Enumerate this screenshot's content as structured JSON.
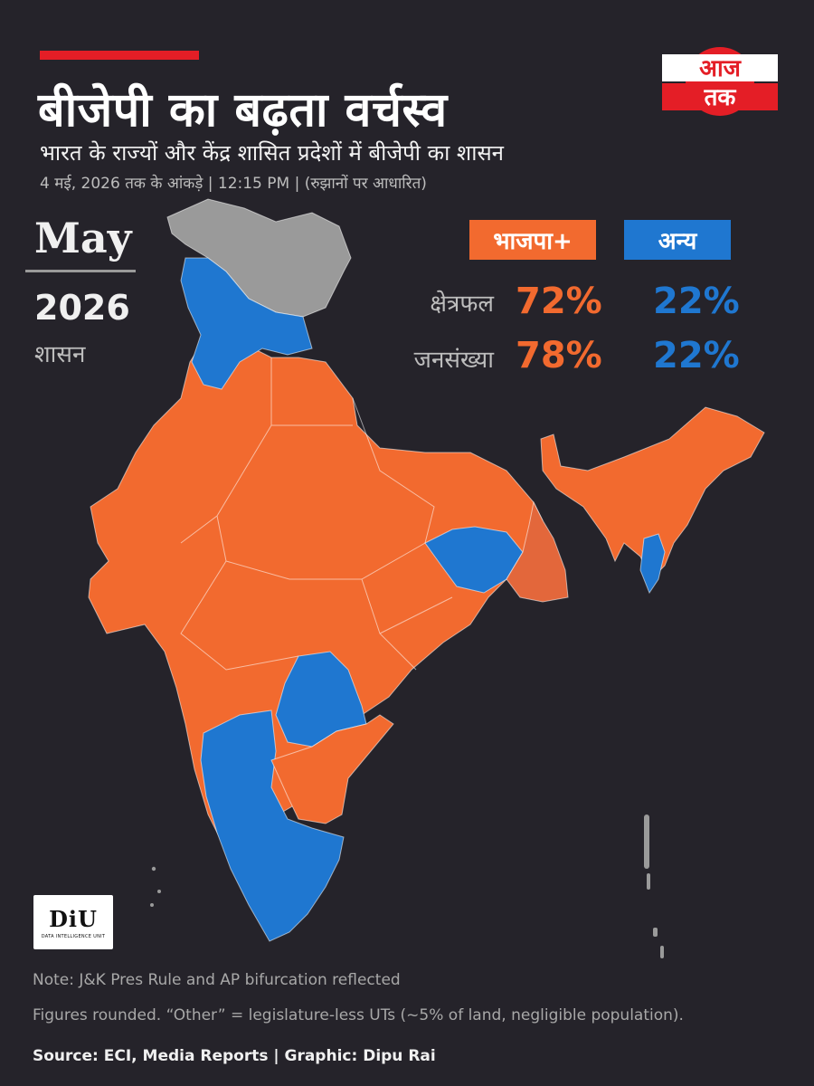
{
  "header": {
    "title": "बीजेपी का बढ़ता वर्चस्व",
    "subtitle": "भारत के राज्यों और केंद्र शासित प्रदेशों में बीजेपी का शासन",
    "dateline": "4 मई, 2026 तक के आंकड़े | 12:15 PM | (रुझानों पर आधारित)"
  },
  "brand": {
    "logo_text_top": "आज",
    "logo_text_bottom": "तक",
    "logo_color": "#e41e26"
  },
  "period": {
    "month": "May",
    "year": "2026",
    "label": "शासन"
  },
  "legend": {
    "bjp_label": "भाजपा+",
    "other_label": "अन्य",
    "bjp_color": "#f26a2f",
    "other_color": "#1f77d0",
    "no_govt_color": "#9a9a9a"
  },
  "stats": {
    "area_label": "क्षेत्रफल",
    "population_label": "जनसंख्या",
    "area_bjp": "72%",
    "area_other": "22%",
    "population_bjp": "78%",
    "population_other": "22%"
  },
  "map_regions": [
    {
      "name": "Jammu & Kashmir / Ladakh",
      "status": "pres-rule"
    },
    {
      "name": "Himachal Pradesh",
      "status": "other"
    },
    {
      "name": "Punjab",
      "status": "other"
    },
    {
      "name": "Uttarakhand",
      "status": "bjp"
    },
    {
      "name": "Uttar Pradesh",
      "status": "bjp"
    },
    {
      "name": "Rajasthan",
      "status": "bjp"
    },
    {
      "name": "Gujarat",
      "status": "bjp"
    },
    {
      "name": "Madhya Pradesh",
      "status": "bjp"
    },
    {
      "name": "Bihar",
      "status": "bjp"
    },
    {
      "name": "Jharkhand",
      "status": "other"
    },
    {
      "name": "West Bengal",
      "status": "bjp-lighter"
    },
    {
      "name": "Odisha",
      "status": "bjp"
    },
    {
      "name": "Chhattisgarh",
      "status": "bjp"
    },
    {
      "name": "Maharashtra",
      "status": "bjp"
    },
    {
      "name": "Telangana",
      "status": "other"
    },
    {
      "name": "Andhra Pradesh",
      "status": "bjp"
    },
    {
      "name": "Karnataka",
      "status": "other"
    },
    {
      "name": "Tamil Nadu",
      "status": "other"
    },
    {
      "name": "Kerala",
      "status": "other"
    },
    {
      "name": "North East",
      "status": "bjp"
    },
    {
      "name": "Mizoram",
      "status": "other"
    }
  ],
  "diu_logo": {
    "main": "DiU",
    "sub": "DATA INTELLIGENCE UNIT"
  },
  "notes": {
    "note1": "Note: J&K Pres Rule and AP bifurcation reflected",
    "note2": "Figures rounded. “Other” = legislature-less UTs (~5% of land, negligible population).",
    "source": "Source: ECI, Media Reports  |  Graphic: Dipu Rai"
  }
}
